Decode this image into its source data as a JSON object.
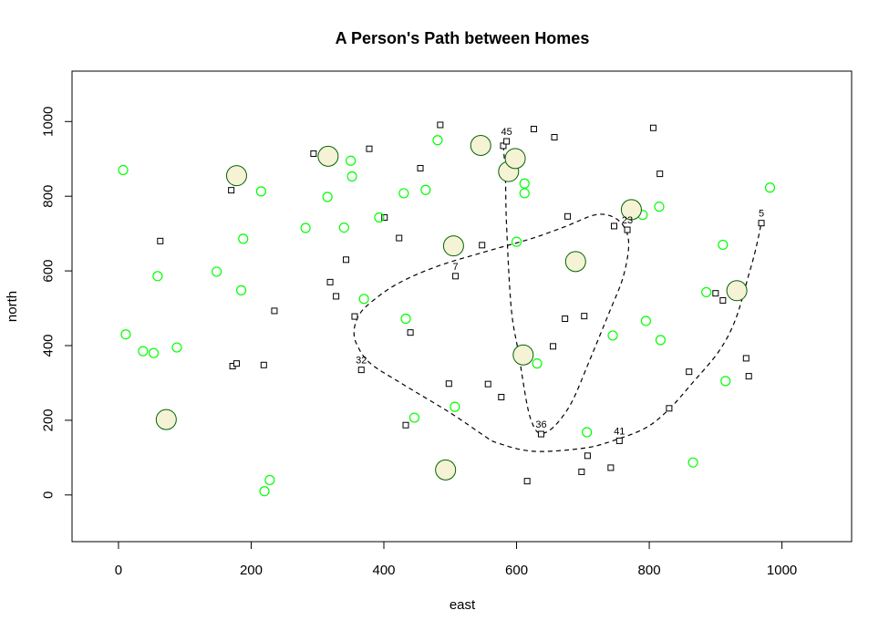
{
  "chart_data": {
    "type": "scatter",
    "title": "A Person's Path between Homes",
    "xlabel": "east",
    "ylabel": "north",
    "xlim": [
      -70,
      1105
    ],
    "ylim": [
      -125,
      1135
    ],
    "xticks": [
      0,
      200,
      400,
      600,
      800,
      1000
    ],
    "yticks": [
      0,
      200,
      400,
      600,
      800,
      1000
    ],
    "xtick_labels": [
      "0",
      "200",
      "400",
      "600",
      "800",
      "1000"
    ],
    "ytick_labels": [
      "0",
      "200",
      "400",
      "600",
      "800",
      "1000"
    ],
    "colors": {
      "green_circle": "#00ff00",
      "home_fill": "#f5f2d5",
      "home_stroke": "#006400",
      "square": "#000000",
      "path": "#000000"
    },
    "series": [
      {
        "marker": "small-square",
        "points": [
          [
            63,
            680
          ],
          [
            170,
            816
          ],
          [
            172,
            345
          ],
          [
            178,
            352
          ],
          [
            219,
            348
          ],
          [
            235,
            493
          ],
          [
            294,
            914
          ],
          [
            319,
            570
          ],
          [
            328,
            532
          ],
          [
            343,
            630
          ],
          [
            356,
            478
          ],
          [
            366,
            335
          ],
          [
            378,
            927
          ],
          [
            401,
            743
          ],
          [
            423,
            688
          ],
          [
            433,
            187
          ],
          [
            440,
            435
          ],
          [
            455,
            875
          ],
          [
            485,
            991
          ],
          [
            498,
            298
          ],
          [
            508,
            586
          ],
          [
            548,
            669
          ],
          [
            557,
            297
          ],
          [
            577,
            262
          ],
          [
            580,
            935
          ],
          [
            585,
            947
          ],
          [
            616,
            37
          ],
          [
            626,
            980
          ],
          [
            637,
            163
          ],
          [
            655,
            398
          ],
          [
            657,
            958
          ],
          [
            673,
            472
          ],
          [
            677,
            746
          ],
          [
            698,
            62
          ],
          [
            702,
            479
          ],
          [
            707,
            105
          ],
          [
            742,
            73
          ],
          [
            747,
            720
          ],
          [
            755,
            145
          ],
          [
            767,
            710
          ],
          [
            806,
            983
          ],
          [
            816,
            860
          ],
          [
            830,
            232
          ],
          [
            860,
            330
          ],
          [
            900,
            540
          ],
          [
            911,
            521
          ],
          [
            946,
            366
          ],
          [
            950,
            318
          ],
          [
            969,
            728
          ]
        ]
      },
      {
        "marker": "green-circle",
        "points": [
          [
            7,
            870
          ],
          [
            11,
            430
          ],
          [
            37,
            385
          ],
          [
            53,
            380
          ],
          [
            59,
            586
          ],
          [
            88,
            395
          ],
          [
            148,
            598
          ],
          [
            185,
            548
          ],
          [
            188,
            686
          ],
          [
            215,
            813
          ],
          [
            220,
            10
          ],
          [
            228,
            40
          ],
          [
            282,
            715
          ],
          [
            315,
            798
          ],
          [
            340,
            716
          ],
          [
            350,
            895
          ],
          [
            352,
            853
          ],
          [
            370,
            525
          ],
          [
            393,
            743
          ],
          [
            430,
            808
          ],
          [
            433,
            472
          ],
          [
            446,
            207
          ],
          [
            463,
            817
          ],
          [
            481,
            950
          ],
          [
            507,
            236
          ],
          [
            600,
            678
          ],
          [
            612,
            834
          ],
          [
            612,
            808
          ],
          [
            631,
            352
          ],
          [
            706,
            168
          ],
          [
            745,
            427
          ],
          [
            790,
            750
          ],
          [
            795,
            466
          ],
          [
            815,
            772
          ],
          [
            817,
            415
          ],
          [
            866,
            87
          ],
          [
            886,
            543
          ],
          [
            911,
            670
          ],
          [
            915,
            305
          ],
          [
            982,
            823
          ]
        ]
      },
      {
        "marker": "home",
        "points": [
          [
            72,
            202
          ],
          [
            178,
            855
          ],
          [
            316,
            907
          ],
          [
            493,
            67
          ],
          [
            505,
            667
          ],
          [
            546,
            936
          ],
          [
            588,
            866
          ],
          [
            598,
            901
          ],
          [
            610,
            375
          ],
          [
            689,
            625
          ],
          [
            773,
            764
          ],
          [
            932,
            547
          ]
        ]
      }
    ],
    "labeled_points": [
      {
        "label": "45",
        "x": 585,
        "y": 947
      },
      {
        "label": "23",
        "x": 767,
        "y": 710
      },
      {
        "label": "5",
        "x": 969,
        "y": 728
      },
      {
        "label": "7",
        "x": 508,
        "y": 586
      },
      {
        "label": "32",
        "x": 366,
        "y": 335
      },
      {
        "label": "36",
        "x": 637,
        "y": 163
      },
      {
        "label": "41",
        "x": 755,
        "y": 145
      }
    ],
    "path": {
      "style": "dashed",
      "points": [
        [
          580,
          935
        ],
        [
          583,
          860
        ],
        [
          585,
          720
        ],
        [
          592,
          500
        ],
        [
          603,
          380
        ],
        [
          615,
          250
        ],
        [
          622,
          200
        ],
        [
          632,
          168
        ],
        [
          647,
          170
        ],
        [
          665,
          200
        ],
        [
          685,
          255
        ],
        [
          710,
          360
        ],
        [
          740,
          490
        ],
        [
          760,
          580
        ],
        [
          769,
          665
        ],
        [
          763,
          715
        ],
        [
          745,
          745
        ],
        [
          718,
          750
        ],
        [
          675,
          720
        ],
        [
          625,
          688
        ],
        [
          560,
          655
        ],
        [
          480,
          612
        ],
        [
          420,
          565
        ],
        [
          380,
          515
        ],
        [
          362,
          480
        ],
        [
          355,
          438
        ],
        [
          360,
          400
        ],
        [
          380,
          352
        ],
        [
          430,
          295
        ],
        [
          500,
          220
        ],
        [
          550,
          160
        ],
        [
          570,
          140
        ],
        [
          625,
          117
        ],
        [
          700,
          125
        ],
        [
          745,
          145
        ],
        [
          795,
          180
        ],
        [
          830,
          230
        ],
        [
          865,
          300
        ],
        [
          905,
          385
        ],
        [
          930,
          470
        ],
        [
          950,
          590
        ],
        [
          960,
          655
        ],
        [
          969,
          728
        ]
      ]
    }
  }
}
